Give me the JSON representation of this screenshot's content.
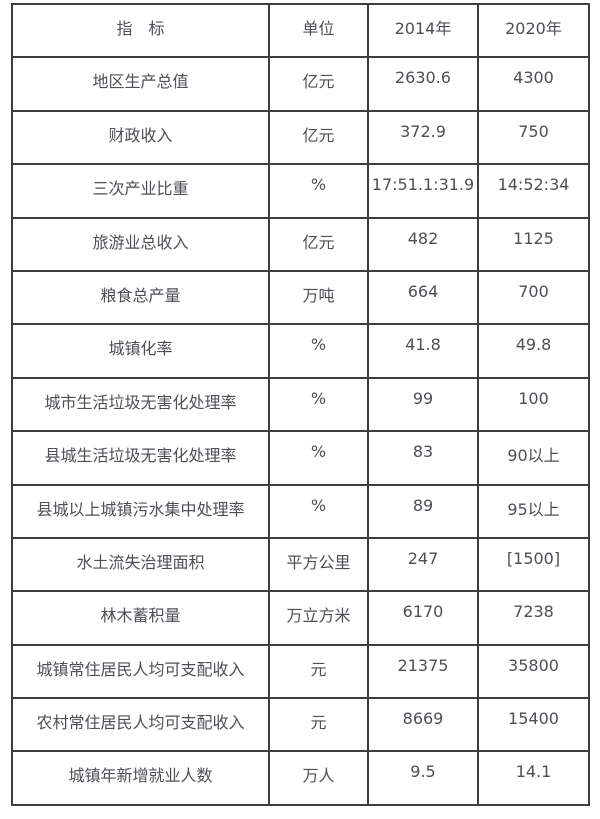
{
  "table": {
    "columns": [
      "指　标",
      "单位",
      "2014年",
      "2020年"
    ],
    "rows": [
      [
        "地区生产总值",
        "亿元",
        "2630.6",
        "4300"
      ],
      [
        "财政收入",
        "亿元",
        "372.9",
        "750"
      ],
      [
        "三次产业比重",
        "%",
        "17:51.1:31.9",
        "14:52:34"
      ],
      [
        "旅游业总收入",
        "亿元",
        "482",
        "1125"
      ],
      [
        "粮食总产量",
        "万吨",
        "664",
        "700"
      ],
      [
        "城镇化率",
        "%",
        "41.8",
        "49.8"
      ],
      [
        "城市生活垃圾无害化处理率",
        "%",
        "99",
        "100"
      ],
      [
        "县城生活垃圾无害化处理率",
        "%",
        "83",
        "90以上"
      ],
      [
        "县城以上城镇污水集中处理率",
        "%",
        "89",
        "95以上"
      ],
      [
        "水土流失治理面积",
        "平方公里",
        "247",
        "[1500]"
      ],
      [
        "林木蓄积量",
        "万立方米",
        "6170",
        "7238"
      ],
      [
        "城镇常住居民人均可支配收入",
        "元",
        "21375",
        "35800"
      ],
      [
        "农村常住居民人均可支配收入",
        "元",
        "8669",
        "15400"
      ],
      [
        "城镇年新增就业人数",
        "万人",
        "9.5",
        "14.1"
      ]
    ],
    "colors": {
      "text": "#4c4f54",
      "border": "#3e3e3e",
      "background": "#ffffff"
    }
  }
}
